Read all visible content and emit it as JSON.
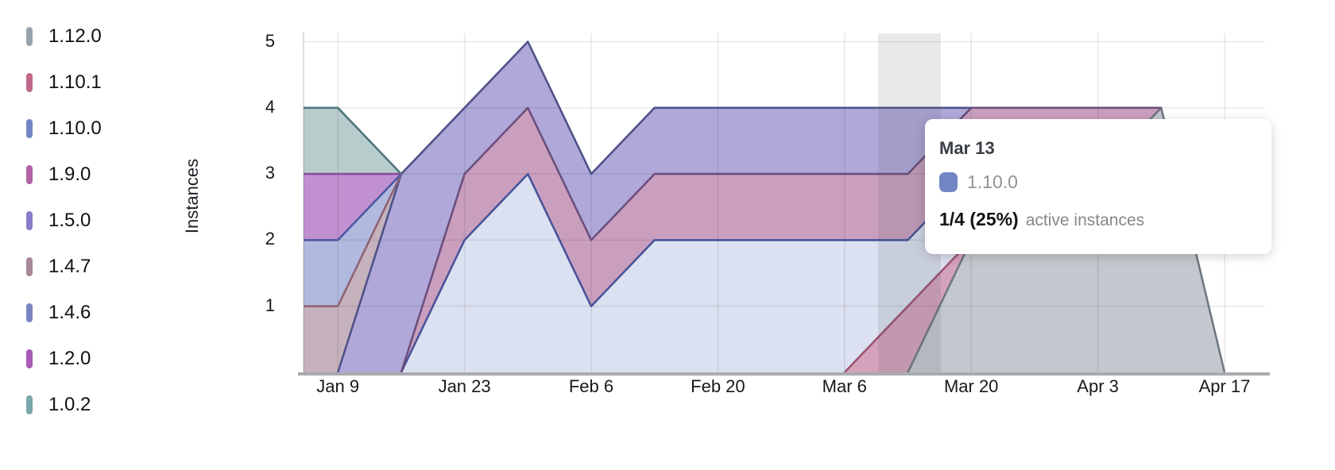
{
  "y_axis": {
    "title": "Instances",
    "ticks": [
      "1",
      "2",
      "3",
      "4",
      "5"
    ]
  },
  "x_axis": {
    "tick_labels": [
      "Jan 9",
      "Jan 23",
      "Feb 6",
      "Feb 20",
      "Mar 6",
      "Mar 20",
      "Apr 3",
      "Apr 17"
    ]
  },
  "legend": {
    "items": [
      {
        "label": "1.12.0",
        "color": "#98a2ac"
      },
      {
        "label": "1.10.1",
        "color": "#c0698a"
      },
      {
        "label": "1.10.0",
        "color": "#7286c5"
      },
      {
        "label": "1.9.0",
        "color": "#b263a4"
      },
      {
        "label": "1.5.0",
        "color": "#8a7bc8"
      },
      {
        "label": "1.4.7",
        "color": "#a88798"
      },
      {
        "label": "1.4.6",
        "color": "#7b83c3"
      },
      {
        "label": "1.2.0",
        "color": "#a75ab5"
      },
      {
        "label": "1.0.2",
        "color": "#7ba7ac"
      }
    ]
  },
  "tooltip": {
    "date": "Mar 13",
    "series": "1.10.0",
    "swatch_color": "#7286c5",
    "value": "1/4 (25%)",
    "suffix": "active instances"
  },
  "chart_data": {
    "type": "area",
    "stacked": true,
    "title": "",
    "xlabel": "",
    "ylabel": "Instances",
    "ylim": [
      0,
      5
    ],
    "grid": true,
    "legend_position": "left",
    "x": [
      "Jan 2",
      "Jan 9",
      "Jan 16",
      "Jan 23",
      "Jan 30",
      "Feb 6",
      "Feb 13",
      "Feb 20",
      "Feb 27",
      "Mar 6",
      "Mar 13",
      "Mar 20",
      "Mar 27",
      "Apr 3",
      "Apr 10",
      "Apr 17"
    ],
    "xticks_shown": [
      "Jan 9",
      "Jan 23",
      "Feb 6",
      "Feb 20",
      "Mar 6",
      "Mar 20",
      "Apr 3",
      "Apr 17"
    ],
    "stack_order_note": "series listed bottom-to-top of the stack (newest version at bottom)",
    "series": [
      {
        "name": "1.12.0",
        "values": [
          0,
          0,
          0,
          0,
          0,
          0,
          0,
          0,
          0,
          0,
          0,
          2,
          3,
          3,
          4,
          0
        ],
        "color": "#98a2ac",
        "fill": "#c4c8ce",
        "line": "#6f7781"
      },
      {
        "name": "1.10.1",
        "values": [
          0,
          0,
          0,
          0,
          0,
          0,
          0,
          0,
          0,
          0,
          1,
          0,
          0,
          0,
          0,
          0
        ],
        "color": "#c0698a",
        "fill": "#d4a2bb",
        "line": "#9b5570"
      },
      {
        "name": "1.10.0",
        "values": [
          0,
          0,
          0,
          2,
          3,
          1,
          2,
          2,
          2,
          2,
          1,
          1,
          0,
          0,
          0,
          0
        ],
        "color": "#7286c5",
        "fill": "#dce1f1",
        "line": "#47549a"
      },
      {
        "name": "1.9.0",
        "values": [
          0,
          0,
          0,
          1,
          1,
          1,
          1,
          1,
          1,
          1,
          1,
          1,
          1,
          1,
          0,
          0
        ],
        "color": "#b263a4",
        "fill": "#ca9fbe",
        "line": "#6b4f7d"
      },
      {
        "name": "1.5.0",
        "values": [
          0,
          0,
          3,
          1,
          1,
          1,
          1,
          1,
          1,
          1,
          1,
          0,
          0,
          0,
          0,
          0
        ],
        "color": "#8a7bc8",
        "fill": "#b0a8d9",
        "line": "#4e5288"
      },
      {
        "name": "1.4.7",
        "values": [
          1,
          1,
          0,
          0,
          0,
          0,
          0,
          0,
          0,
          0,
          0,
          0,
          0,
          0,
          0,
          0
        ],
        "color": "#a88798",
        "fill": "#c5b2bd",
        "line": "#8e6377"
      },
      {
        "name": "1.4.6",
        "values": [
          1,
          1,
          0,
          0,
          0,
          0,
          0,
          0,
          0,
          0,
          0,
          0,
          0,
          0,
          0,
          0
        ],
        "color": "#7b83c3",
        "fill": "#b2b9de",
        "line": "#4b59a4"
      },
      {
        "name": "1.2.0",
        "values": [
          1,
          1,
          0,
          0,
          0,
          0,
          0,
          0,
          0,
          0,
          0,
          0,
          0,
          0,
          0,
          0
        ],
        "color": "#a75ab5",
        "fill": "#c190d0",
        "line": "#8a4da0"
      },
      {
        "name": "1.0.2",
        "values": [
          1,
          1,
          0,
          0,
          0,
          0,
          0,
          0,
          0,
          0,
          0,
          0,
          0,
          0,
          0,
          0
        ],
        "color": "#7ba7ac",
        "fill": "#b9cccc",
        "line": "#4e767d"
      }
    ],
    "hover": {
      "date": "Mar 13",
      "series": "1.10.0",
      "fraction": "1/4",
      "percent": "25%",
      "suffix": "active instances"
    }
  }
}
